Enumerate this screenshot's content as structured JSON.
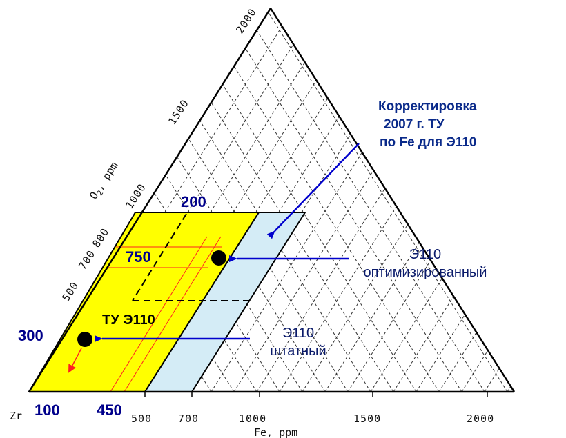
{
  "axes": {
    "fe_label": "Fe, ppm",
    "o2_label": "O",
    "o2_sub": "2",
    "o2_unit": ", ppm",
    "zr_label": "Zr",
    "fe_ticks": [
      "500",
      "700",
      "1000",
      "1500",
      "2000"
    ],
    "o2_ticks": [
      "500",
      "700",
      "800",
      "1000",
      "1500",
      "2000"
    ]
  },
  "highlights": {
    "fe_low": "100",
    "fe_high": "450",
    "o2_low": "300",
    "o2_mid": "750",
    "fe_mid": "200"
  },
  "regions": {
    "spec_label": "ТУ Э110"
  },
  "annotations": {
    "correction": [
      "Корректировка",
      "2007 г. ТУ",
      "по Fe для Э110"
    ],
    "optimized": [
      "Э110",
      "оптимизированный"
    ],
    "standard": [
      "Э110",
      "штатный"
    ]
  },
  "colors": {
    "yellow_region": "#ffff00",
    "blue_region": "#d4ecf6",
    "grid": "#333333",
    "red_lines": "#ff2020",
    "arrows": "#0000cc",
    "labels": "#00008b"
  }
}
